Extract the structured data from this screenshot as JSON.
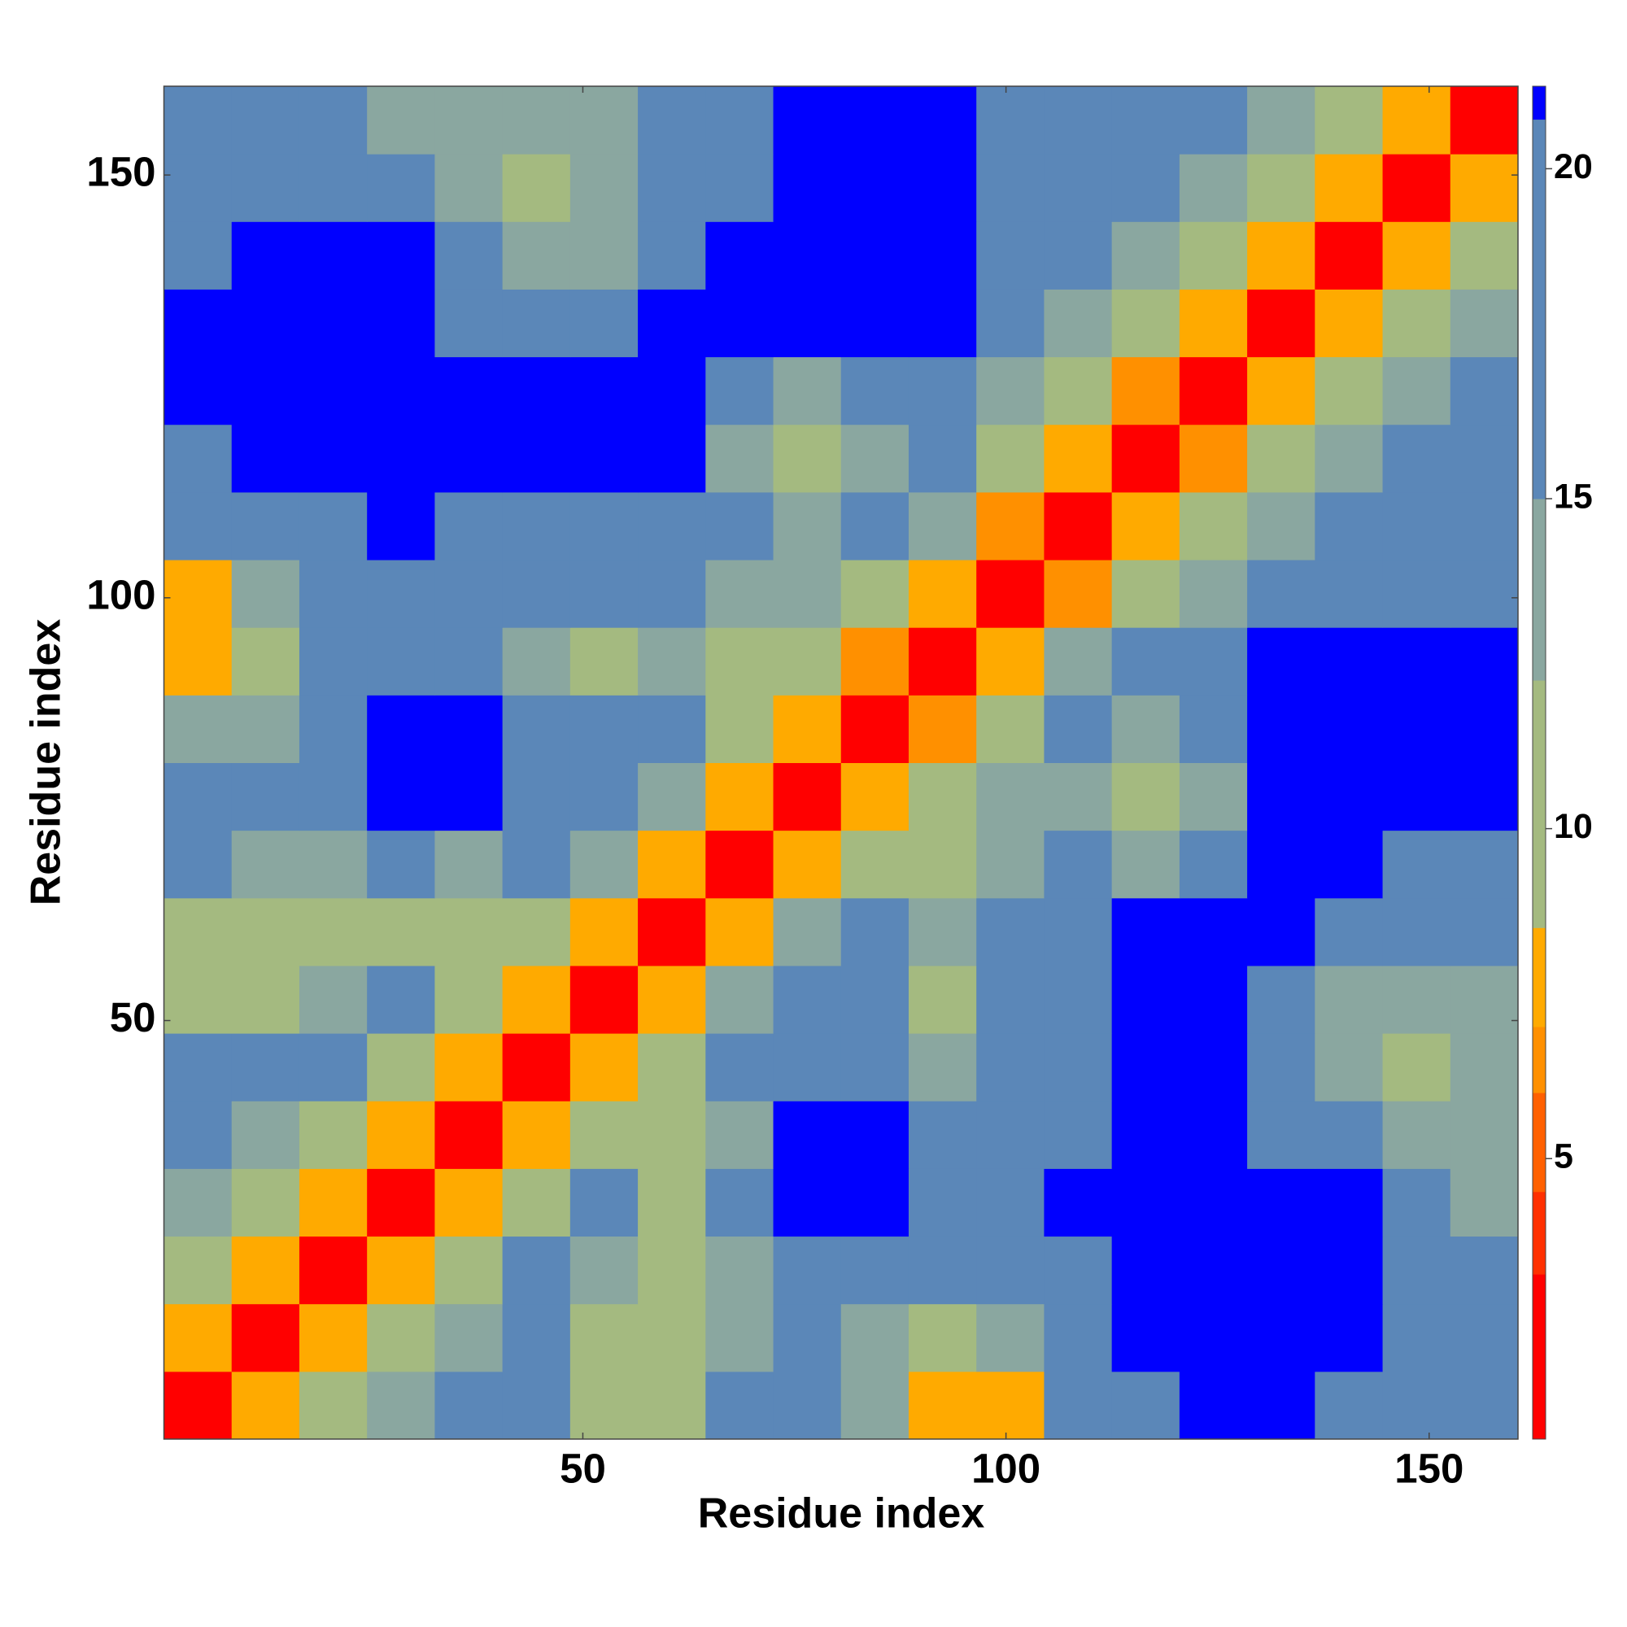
{
  "chart_data": {
    "type": "heatmap",
    "xlabel": "Residue index",
    "ylabel": "Residue index",
    "xlim": [
      0.5,
      160.5
    ],
    "ylim": [
      0.5,
      160.5
    ],
    "xticks": [
      50,
      100,
      150
    ],
    "yticks": [
      50,
      100,
      150
    ],
    "x_bins": [
      0.5,
      8.5,
      16.5,
      24.5,
      32.5,
      40.5,
      48.5,
      56.5,
      64.5,
      72.5,
      80.5,
      88.5,
      96.5,
      104.5,
      112.5,
      120.5,
      128.5,
      136.5,
      144.5,
      152.5,
      160.5
    ],
    "y_bins": [
      0.5,
      8.5,
      16.5,
      24.5,
      32.5,
      40.5,
      48.5,
      56.5,
      64.5,
      72.5,
      80.5,
      88.5,
      96.5,
      104.5,
      112.5,
      120.5,
      128.5,
      136.5,
      144.5,
      152.5,
      160.5
    ],
    "z": [
      [
        3,
        8,
        12,
        15,
        17,
        16,
        9,
        9,
        16,
        17,
        15,
        8,
        8,
        16,
        20,
        21,
        21,
        20,
        18,
        17
      ],
      [
        8,
        3,
        8,
        12,
        14,
        16,
        12,
        10,
        14,
        16,
        14,
        10,
        13,
        17,
        21,
        21,
        21,
        21,
        19,
        18
      ],
      [
        12,
        8,
        3,
        8,
        12,
        16,
        14,
        12,
        15,
        17,
        17,
        16,
        17,
        20,
        21,
        21,
        21,
        21,
        18,
        17
      ],
      [
        15,
        12,
        8,
        3,
        8,
        12,
        16,
        9,
        17,
        21,
        21,
        18,
        18,
        21,
        21,
        21,
        21,
        21,
        17,
        15
      ],
      [
        17,
        14,
        12,
        8,
        3,
        8,
        9,
        10,
        15,
        21,
        21,
        19,
        19,
        20,
        21,
        21,
        20,
        17,
        14,
        14
      ],
      [
        16,
        16,
        16,
        12,
        8,
        3,
        8,
        12,
        16,
        18,
        17,
        13,
        18,
        20,
        21,
        21,
        19,
        14,
        12,
        14
      ],
      [
        9,
        12,
        14,
        16,
        9,
        8,
        3,
        8,
        13,
        17,
        16,
        12,
        17,
        19,
        21,
        21,
        18,
        15,
        13,
        15
      ],
      [
        9,
        10,
        12,
        9,
        10,
        12,
        8,
        3,
        8,
        14,
        18,
        14,
        18,
        20,
        21,
        21,
        21,
        19,
        17,
        18
      ],
      [
        16,
        14,
        15,
        17,
        15,
        16,
        13,
        8,
        3,
        8,
        12,
        10,
        15,
        16,
        14,
        17,
        21,
        21,
        20,
        20
      ],
      [
        17,
        16,
        17,
        21,
        21,
        18,
        17,
        14,
        8,
        3,
        8,
        9,
        14,
        14,
        10,
        14,
        21,
        21,
        21,
        21
      ],
      [
        15,
        14,
        17,
        21,
        21,
        17,
        16,
        18,
        12,
        8,
        3,
        7,
        12,
        17,
        15,
        16,
        21,
        21,
        21,
        21
      ],
      [
        8,
        10,
        16,
        18,
        19,
        13,
        12,
        14,
        10,
        9,
        7,
        3,
        8,
        14,
        16,
        17,
        21,
        21,
        21,
        21
      ],
      [
        8,
        13,
        17,
        18,
        19,
        18,
        17,
        18,
        15,
        14,
        12,
        8,
        3,
        7,
        11,
        13,
        17,
        20,
        19,
        18
      ],
      [
        16,
        17,
        20,
        21,
        20,
        20,
        19,
        20,
        16,
        14,
        17,
        14,
        7,
        3,
        8,
        10,
        13,
        17,
        18,
        16
      ],
      [
        20,
        21,
        21,
        21,
        21,
        21,
        21,
        21,
        14,
        10,
        15,
        16,
        11,
        8,
        3,
        7,
        10,
        14,
        16,
        17
      ],
      [
        21,
        21,
        21,
        21,
        21,
        21,
        21,
        21,
        17,
        14,
        16,
        17,
        13,
        10,
        7,
        3,
        8,
        9,
        14,
        16
      ],
      [
        21,
        21,
        21,
        21,
        20,
        19,
        18,
        21,
        21,
        21,
        21,
        21,
        17,
        13,
        10,
        8,
        3,
        8,
        10,
        14
      ],
      [
        20,
        21,
        21,
        21,
        17,
        14,
        15,
        19,
        21,
        21,
        21,
        21,
        20,
        17,
        14,
        9,
        8,
        3,
        8,
        12
      ],
      [
        18,
        19,
        18,
        17,
        14,
        12,
        13,
        17,
        20,
        21,
        21,
        21,
        19,
        18,
        16,
        14,
        10,
        8,
        3,
        8
      ],
      [
        17,
        18,
        17,
        15,
        14,
        14,
        15,
        18,
        20,
        21,
        21,
        21,
        18,
        16,
        17,
        16,
        14,
        12,
        8,
        3
      ]
    ],
    "colorbar": {
      "zlim": [
        0.75,
        21.25
      ],
      "ticks": [
        5,
        10,
        15,
        20
      ],
      "bounds": [
        0.75,
        3.25,
        4.5,
        6,
        7,
        8.5,
        12.25,
        15,
        20.75,
        21.25
      ],
      "colors": [
        "#ff0000",
        "#ff3000",
        "#ff6000",
        "#ff9000",
        "#ffaa00",
        "#a4ba80",
        "#8aa7a0",
        "#5b87b8",
        "#0000ff"
      ]
    }
  }
}
